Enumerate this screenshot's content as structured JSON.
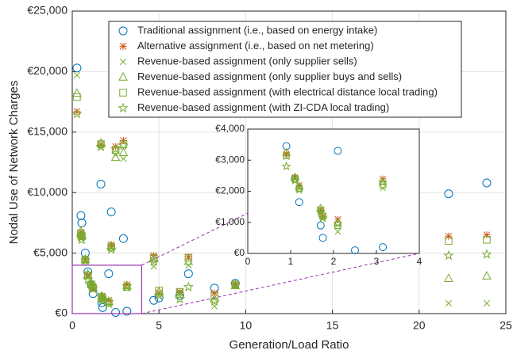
{
  "chart_data": {
    "type": "scatter",
    "xlabel": "Generation/Load Ratio",
    "ylabel": "Nodal Use of Network Charges",
    "xlim": [
      0,
      25
    ],
    "xticks": [
      0,
      5,
      10,
      15,
      20,
      25
    ],
    "ylim": [
      0,
      25000
    ],
    "yticks": [
      {
        "value": 0,
        "label": "€0"
      },
      {
        "value": 5000,
        "label": "€5,000"
      },
      {
        "value": 10000,
        "label": "€10,000"
      },
      {
        "value": 15000,
        "label": "€15,000"
      },
      {
        "value": 20000,
        "label": "€20,000"
      },
      {
        "value": 25000,
        "label": "€25,000"
      }
    ],
    "grid": true,
    "legend": "north",
    "x": [
      0.27,
      0.5,
      0.55,
      0.75,
      0.9,
      1.1,
      1.2,
      1.65,
      1.7,
      1.75,
      2.1,
      2.25,
      2.5,
      2.95,
      3.15,
      4.7,
      5.0,
      6.2,
      6.7,
      8.2,
      9.4,
      21.7,
      23.9
    ],
    "series": [
      {
        "name": "Traditional assignment (i.e., based on energy intake)",
        "color": "#0072BD",
        "marker": "o",
        "values": [
          20300,
          8100,
          7500,
          5000,
          3450,
          2400,
          1650,
          10700,
          900,
          500,
          3300,
          8400,
          100,
          6200,
          200,
          1100,
          1300,
          1500,
          3300,
          2100,
          2500,
          9900,
          10800
        ]
      },
      {
        "name": "Alternative assignment (i.e., based on net metering)",
        "color": "#D95319",
        "marker": "*",
        "values": [
          16700,
          6700,
          6400,
          4500,
          3200,
          2450,
          2200,
          14000,
          1400,
          1200,
          1100,
          5700,
          13800,
          14300,
          2400,
          4800,
          1700,
          1800,
          4700,
          1700,
          2400,
          6400,
          6500
        ]
      },
      {
        "name": "Revenue-based assignment (only supplier sells)",
        "color": "#77AC30",
        "marker": "x",
        "values": [
          19700,
          6500,
          6300,
          4400,
          3100,
          2400,
          2100,
          13700,
          1300,
          1100,
          700,
          5400,
          13100,
          12800,
          2100,
          3900,
          1500,
          1700,
          4000,
          600,
          2300,
          850,
          850
        ]
      },
      {
        "name": "Revenue-based assignment (only supplier buys and sells)",
        "color": "#77AC30",
        "marker": "^",
        "values": [
          18200,
          6800,
          6500,
          4500,
          3250,
          2450,
          2150,
          14100,
          1450,
          1250,
          1000,
          5600,
          12900,
          13300,
          2300,
          4500,
          1800,
          1600,
          4300,
          1200,
          2300,
          2900,
          3100
        ]
      },
      {
        "name": "Revenue-based assignment (with electrical distance local trading)",
        "color": "#77AC30",
        "marker": "s",
        "values": [
          17900,
          6600,
          6400,
          4400,
          3150,
          2400,
          2100,
          14000,
          1400,
          1200,
          900,
          5500,
          13500,
          14000,
          2200,
          4600,
          1900,
          1800,
          4600,
          1500,
          2400,
          6000,
          6100
        ]
      },
      {
        "name": "Revenue-based assignment (with ZI-CDA local trading)",
        "color": "#77AC30",
        "marker": "p",
        "values": [
          16500,
          6300,
          6100,
          4400,
          2800,
          2350,
          2050,
          13800,
          1350,
          1150,
          950,
          5300,
          13600,
          13900,
          2300,
          4300,
          1500,
          1200,
          2200,
          1000,
          2400,
          4800,
          4900
        ]
      }
    ],
    "inset": {
      "xlim": [
        0,
        4
      ],
      "xticks": [
        0,
        1,
        2,
        3,
        4
      ],
      "ylim": [
        0,
        4000
      ],
      "yticks": [
        {
          "value": 0,
          "label": "€0"
        },
        {
          "value": 1000,
          "label": "€1,000"
        },
        {
          "value": 2000,
          "label": "€2,000"
        },
        {
          "value": 3000,
          "label": "€3,000"
        },
        {
          "value": 4000,
          "label": "€4,000"
        }
      ]
    }
  }
}
